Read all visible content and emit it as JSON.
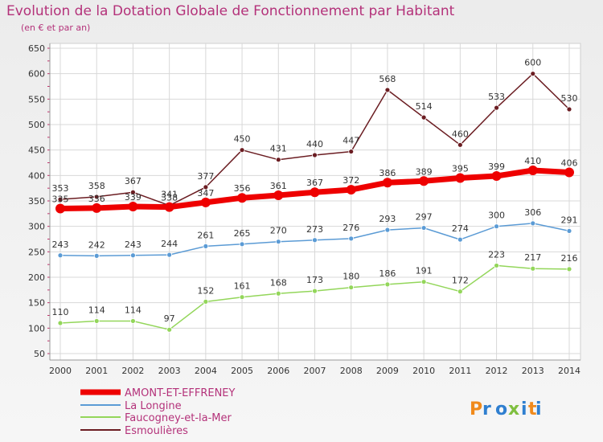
{
  "title": "Evolution de la Dotation Globale de Fonctionnement par Habitant",
  "subtitle": "(en € et par an)",
  "logo": "Proxiti",
  "chart_data": {
    "type": "line",
    "x": [
      2000,
      2001,
      2002,
      2003,
      2004,
      2005,
      2006,
      2007,
      2008,
      2009,
      2010,
      2011,
      2012,
      2013,
      2014
    ],
    "ylim": [
      50,
      650
    ],
    "yticks": [
      50,
      100,
      150,
      200,
      250,
      300,
      350,
      400,
      450,
      500,
      550,
      600,
      650
    ],
    "grid": true,
    "legend_position": "bottom-left",
    "series": [
      {
        "name": "Esmoulières",
        "color": "#6b1d22",
        "values": [
          353,
          358,
          367,
          341,
          377,
          450,
          431,
          440,
          447,
          568,
          514,
          460,
          533,
          600,
          530
        ]
      },
      {
        "name": "La Longine",
        "color": "#5b9bd5",
        "values": [
          243,
          242,
          243,
          244,
          261,
          265,
          270,
          273,
          276,
          293,
          297,
          274,
          300,
          306,
          291
        ]
      },
      {
        "name": "Faucogney-et-la-Mer",
        "color": "#93d65a",
        "values": [
          110,
          114,
          114,
          97,
          152,
          161,
          168,
          173,
          180,
          186,
          191,
          172,
          223,
          217,
          216
        ]
      },
      {
        "name": "AMONT-ET-EFFRENEY",
        "color": "#ee0000",
        "values": [
          335,
          336,
          339,
          338,
          347,
          356,
          361,
          367,
          372,
          386,
          389,
          395,
          399,
          410,
          406
        ]
      }
    ],
    "legend_order": [
      "AMONT-ET-EFFRENEY",
      "La Longine",
      "Faucogney-et-la-Mer",
      "Esmoulières"
    ]
  }
}
